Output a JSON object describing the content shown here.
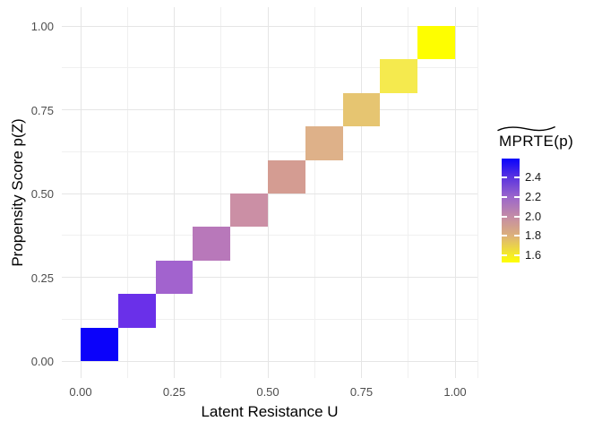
{
  "colors": {
    "background": "#FFFFFF",
    "grid_major": "#E5E5E5",
    "grid_minor": "#F0F0F0",
    "axis_text": "#4D4D4D",
    "axis_title": "#000000",
    "legend_text": "#1A1A1A",
    "legend_tick_mark": "#FFFFFF"
  },
  "chart_data": {
    "type": "heatmap",
    "title": "",
    "xlabel": "Latent Resistance U",
    "ylabel": "Propensity Score p(Z)",
    "x_range": [
      -0.05,
      1.05
    ],
    "y_range": [
      -0.05,
      1.05
    ],
    "grid": "major+minor",
    "x_ticks": [
      {
        "value": 0.0,
        "label": "0.00"
      },
      {
        "value": 0.25,
        "label": "0.25"
      },
      {
        "value": 0.5,
        "label": "0.50"
      },
      {
        "value": 0.75,
        "label": "0.75"
      },
      {
        "value": 1.0,
        "label": "1.00"
      }
    ],
    "y_ticks": [
      {
        "value": 0.0,
        "label": "0.00"
      },
      {
        "value": 0.25,
        "label": "0.25"
      },
      {
        "value": 0.5,
        "label": "0.50"
      },
      {
        "value": 0.75,
        "label": "0.75"
      },
      {
        "value": 1.0,
        "label": "1.00"
      }
    ],
    "x_minor_breaks": [
      0.125,
      0.375,
      0.625,
      0.875
    ],
    "y_minor_breaks": [
      0.125,
      0.375,
      0.625,
      0.875
    ],
    "tiles": [
      {
        "x": 0.05,
        "y": 0.05,
        "w": 0.1,
        "h": 0.1,
        "mprte_est": 2.56,
        "color": "#0B02FA"
      },
      {
        "x": 0.15,
        "y": 0.15,
        "w": 0.1,
        "h": 0.1,
        "mprte_est": 2.4,
        "color": "#6A30E9"
      },
      {
        "x": 0.25,
        "y": 0.25,
        "w": 0.1,
        "h": 0.1,
        "mprte_est": 2.18,
        "color": "#A263CE"
      },
      {
        "x": 0.35,
        "y": 0.35,
        "w": 0.1,
        "h": 0.1,
        "mprte_est": 2.1,
        "color": "#B878BA"
      },
      {
        "x": 0.45,
        "y": 0.45,
        "w": 0.1,
        "h": 0.1,
        "mprte_est": 1.98,
        "color": "#CB8FA5"
      },
      {
        "x": 0.55,
        "y": 0.55,
        "w": 0.1,
        "h": 0.1,
        "mprte_est": 1.91,
        "color": "#D49C92"
      },
      {
        "x": 0.65,
        "y": 0.65,
        "w": 0.1,
        "h": 0.1,
        "mprte_est": 1.8,
        "color": "#DEB189"
      },
      {
        "x": 0.75,
        "y": 0.75,
        "w": 0.1,
        "h": 0.1,
        "mprte_est": 1.72,
        "color": "#E6C571"
      },
      {
        "x": 0.85,
        "y": 0.85,
        "w": 0.1,
        "h": 0.1,
        "mprte_est": 1.62,
        "color": "#F5EA4E"
      },
      {
        "x": 0.95,
        "y": 0.95,
        "w": 0.1,
        "h": 0.1,
        "mprte_est": 1.53,
        "color": "#FEFE00"
      }
    ],
    "legend": {
      "title_main": "MPRTE",
      "title_suffix": "(p)",
      "title_decoration": "widetilde",
      "position": "right",
      "value_range": [
        1.53,
        2.59
      ],
      "ticks": [
        {
          "value": 2.4,
          "label": "2.4"
        },
        {
          "value": 2.2,
          "label": "2.2"
        },
        {
          "value": 2.0,
          "label": "2.0"
        },
        {
          "value": 1.8,
          "label": "1.8"
        },
        {
          "value": 1.6,
          "label": "1.6"
        }
      ],
      "gradient_top_to_bottom": [
        {
          "pos": 0.0,
          "color": "#0903FC"
        },
        {
          "pos": 0.18,
          "color": "#5B33DF"
        },
        {
          "pos": 0.37,
          "color": "#9B66CB"
        },
        {
          "pos": 0.56,
          "color": "#C48CA5"
        },
        {
          "pos": 0.74,
          "color": "#DCB07A"
        },
        {
          "pos": 0.93,
          "color": "#F5EC26"
        },
        {
          "pos": 1.0,
          "color": "#FFFF00"
        }
      ]
    }
  }
}
